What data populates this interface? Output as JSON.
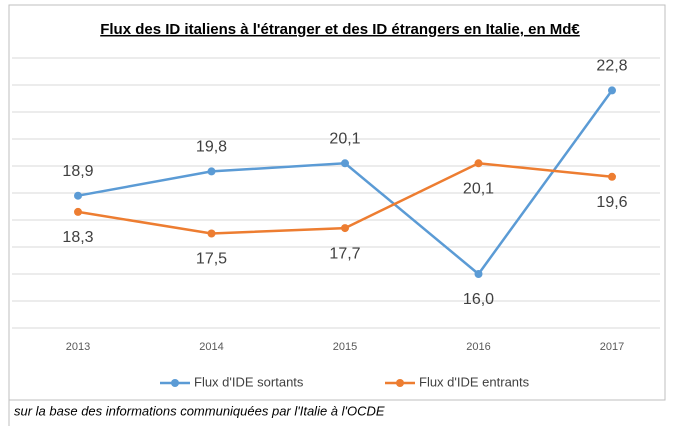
{
  "chart_data": {
    "type": "line",
    "title": "Flux des ID italiens à l'étranger et des ID étrangers en Italie, en Md€",
    "categories": [
      "2013",
      "2014",
      "2015",
      "2016",
      "2017"
    ],
    "series": [
      {
        "name": "Flux d'IDE sortants",
        "color": "#5b9bd5",
        "values": [
          18.9,
          19.8,
          20.1,
          16.0,
          22.8
        ],
        "value_labels": [
          "18,9",
          "19,8",
          "20,1",
          "16,0",
          "22,8"
        ]
      },
      {
        "name": "Flux d'IDE entrants",
        "color": "#ed7d31",
        "values": [
          18.3,
          17.5,
          17.7,
          20.1,
          19.6
        ],
        "value_labels": [
          "18,3",
          "17,5",
          "17,7",
          "20,1",
          "19,6"
        ]
      }
    ],
    "ylim": [
      14,
      24
    ],
    "yticks": [
      14,
      15,
      16,
      17,
      18,
      19,
      20,
      21,
      22,
      23,
      24
    ],
    "grid": true,
    "legend": "bottom",
    "note": "sur la base des informations communiquées par l'Italie à l'OCDE"
  }
}
